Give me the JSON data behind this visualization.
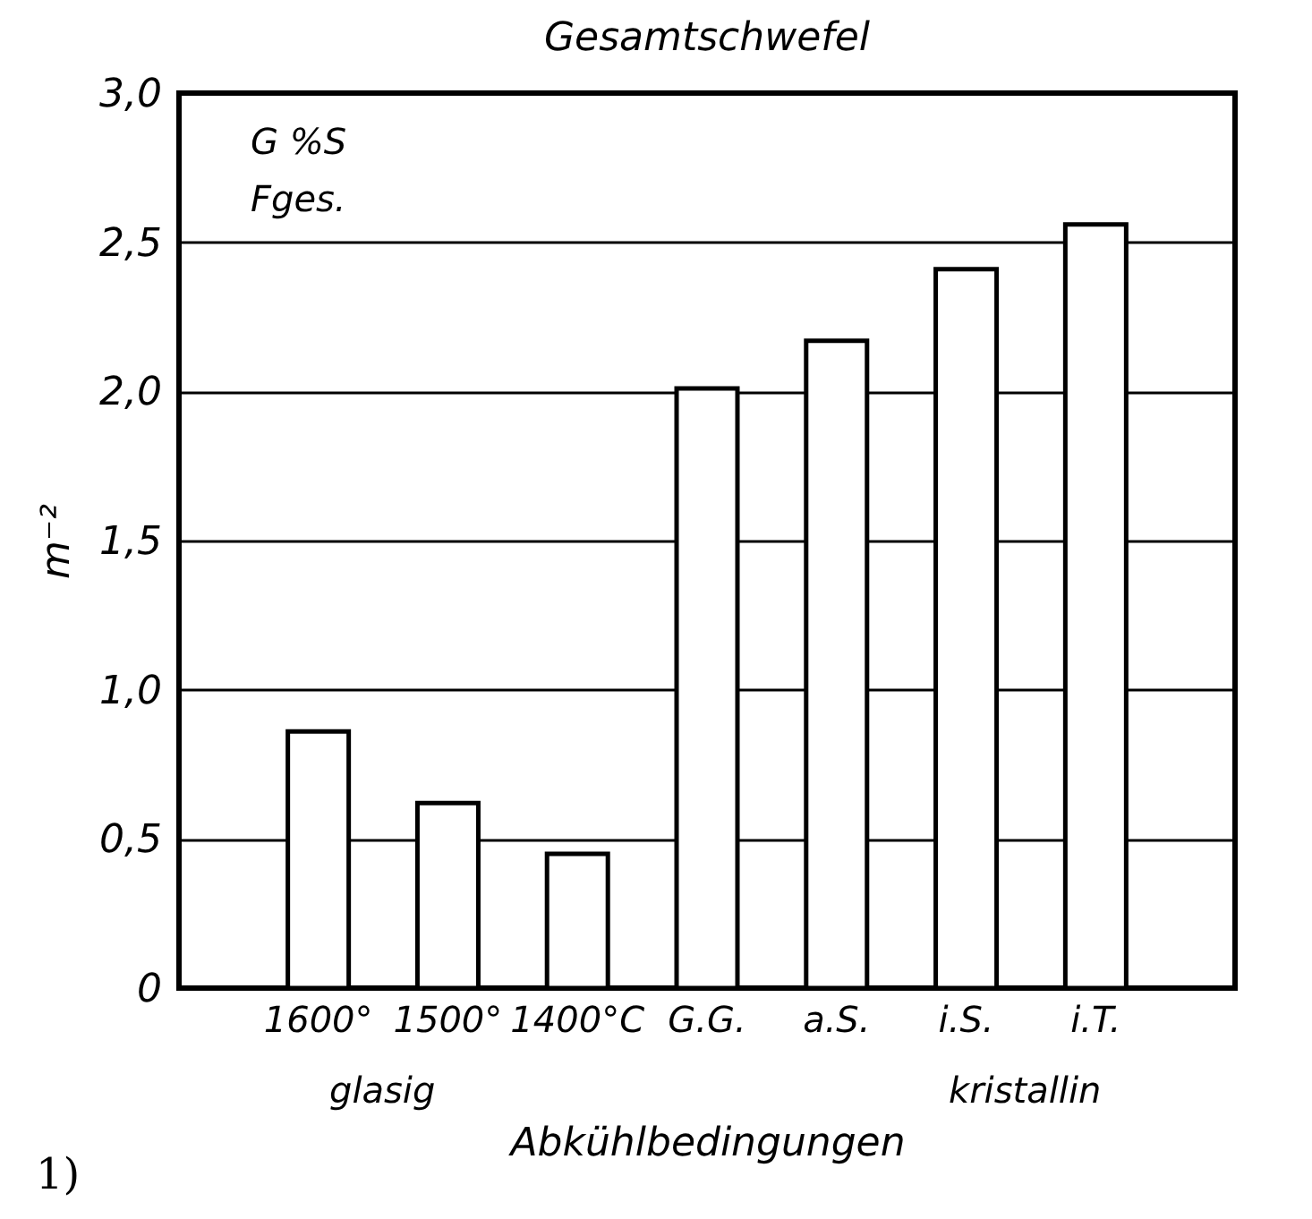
{
  "chart_data": {
    "type": "bar",
    "title": "Gesamtschwefel",
    "ylabel": "m⁻²",
    "xlabel": "Abkühlbedingungen",
    "categories": [
      "1600°",
      "1500°",
      "1400°C",
      "G.G.",
      "a.S.",
      "i.S.",
      "i.T."
    ],
    "values": [
      0.86,
      0.62,
      0.45,
      2.01,
      2.17,
      2.41,
      2.56
    ],
    "color": "#ffffff",
    "ylim": [
      0,
      3
    ],
    "yticks": [
      0,
      {
        "value": 0.5,
        "label": "0,5"
      },
      {
        "value": 1,
        "label": "1,0"
      },
      {
        "value": 1.5,
        "label": "1,5"
      },
      {
        "value": 2,
        "label": "2,0"
      },
      {
        "value": 2.5,
        "label": "2,5"
      },
      {
        "value": 3,
        "label": "3,0"
      }
    ],
    "grid": "y",
    "annotations": [
      "G %S",
      "Fges.",
      "glasig",
      "kristallin",
      "1)"
    ]
  }
}
